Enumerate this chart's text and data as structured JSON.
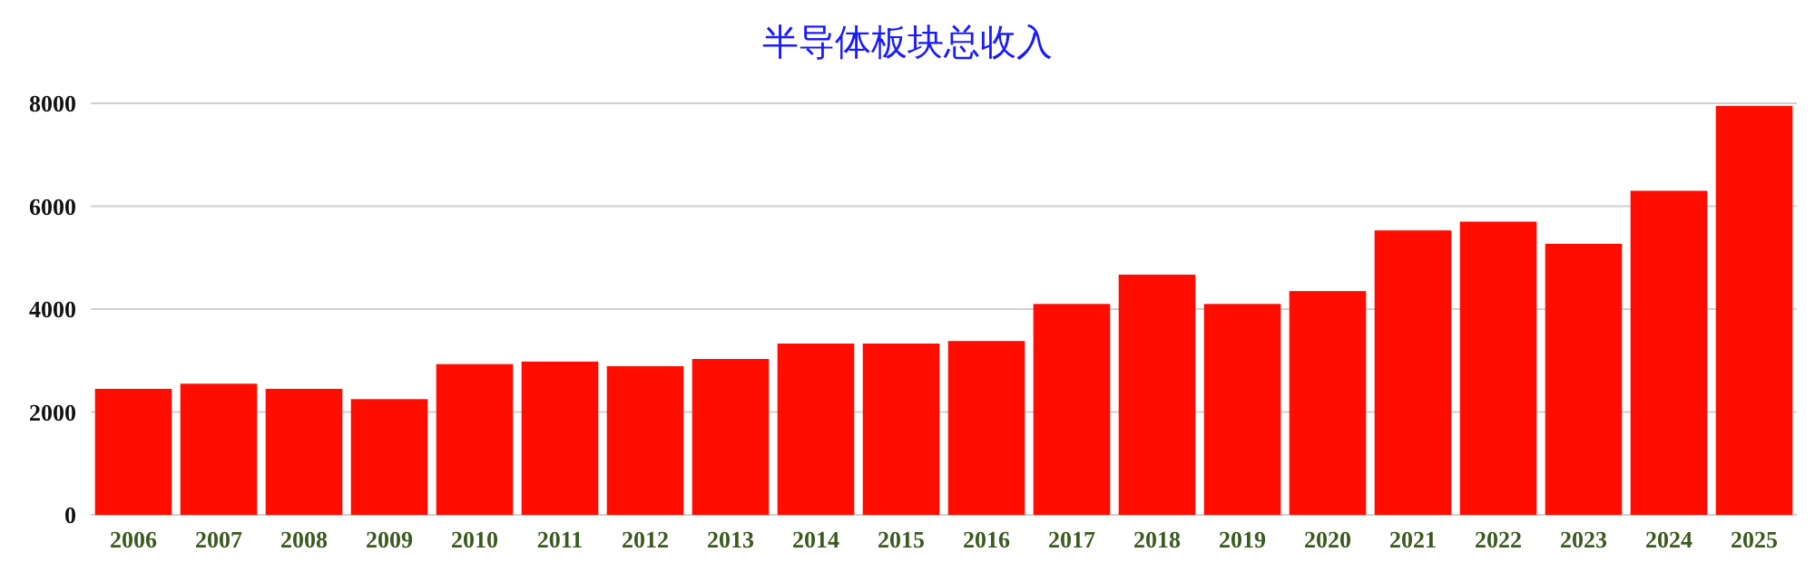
{
  "chart_data": {
    "type": "bar",
    "title": "半导体板块总收入",
    "categories": [
      "2006",
      "2007",
      "2008",
      "2009",
      "2010",
      "2011",
      "2012",
      "2013",
      "2014",
      "2015",
      "2016",
      "2017",
      "2018",
      "2019",
      "2020",
      "2021",
      "2022",
      "2023",
      "2024",
      "2025"
    ],
    "values": [
      2450,
      2550,
      2450,
      2250,
      2930,
      2980,
      2890,
      3030,
      3330,
      3330,
      3380,
      4100,
      4670,
      4100,
      4350,
      5530,
      5700,
      5270,
      6300,
      7950
    ],
    "color": "#ff0d00",
    "ylim": [
      0,
      8000
    ],
    "yticks": [
      0,
      2000,
      4000,
      6000,
      8000
    ],
    "grid": "y"
  }
}
